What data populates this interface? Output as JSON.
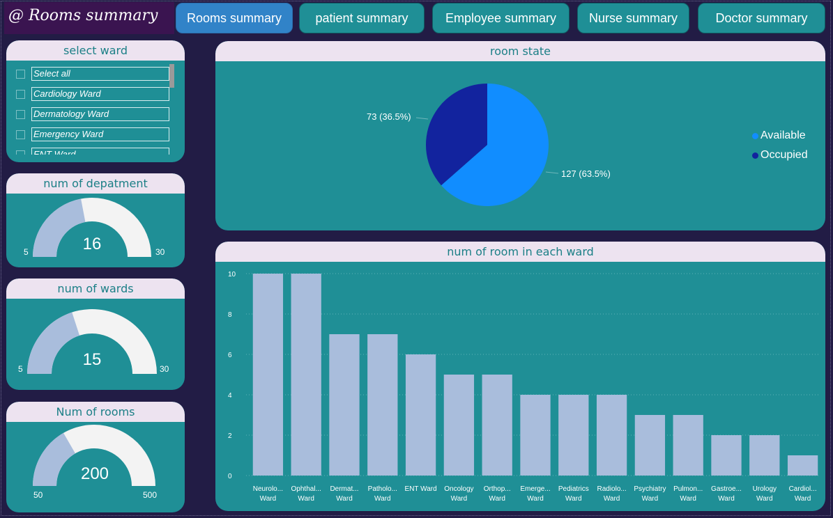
{
  "header": {
    "title": "@ Rooms summary",
    "nav": [
      {
        "label": "Rooms summary",
        "active": true
      },
      {
        "label": "patient summary",
        "active": false
      },
      {
        "label": "Employee summary",
        "active": false
      },
      {
        "label": "Nurse summary",
        "active": false
      },
      {
        "label": "Doctor summary",
        "active": false
      }
    ]
  },
  "slicer": {
    "title": "select ward",
    "items": [
      "Select all",
      "Cardiology Ward",
      "Dermatology Ward",
      "Emergency Ward",
      "ENT Ward"
    ]
  },
  "gauges": {
    "departments": {
      "title": "num of depatment",
      "value": "16",
      "min": "5",
      "max": "30"
    },
    "wards": {
      "title": "num of wards",
      "value": "15",
      "min": "5",
      "max": "30"
    },
    "rooms": {
      "title": "Num of rooms",
      "value": "200",
      "min": "50",
      "max": "500"
    }
  },
  "colors": {
    "background": "#221c45",
    "panel": "#1f8f96",
    "header_bg": "#ede3f0",
    "header_text": "#1b7f86",
    "available": "#118dff",
    "occupied": "#12239e",
    "bar": "#a9bddc",
    "gauge_fill": "#a9bddc",
    "gauge_track": "#f3f3f3",
    "nav_active": "#3183c8"
  },
  "chart_data": [
    {
      "type": "pie",
      "title": "room state",
      "legend_position": "right",
      "slices": [
        {
          "label": "Available",
          "value": 127,
          "percent": "63.5%"
        },
        {
          "label": "Occupied",
          "value": 73,
          "percent": "36.5%"
        }
      ],
      "data_labels": [
        "127 (63.5%)",
        "73 (36.5%)"
      ]
    },
    {
      "type": "bar",
      "title": "num of room in each ward",
      "categories": [
        [
          "Neurolo...",
          "Ward"
        ],
        [
          "Ophthal...",
          "Ward"
        ],
        [
          "Dermat...",
          "Ward"
        ],
        [
          "Patholo...",
          "Ward"
        ],
        [
          "ENT Ward",
          ""
        ],
        [
          "Oncology",
          "Ward"
        ],
        [
          "Orthop...",
          "Ward"
        ],
        [
          "Emerge...",
          "Ward"
        ],
        [
          "Pediatrics",
          "Ward"
        ],
        [
          "Radiolo...",
          "Ward"
        ],
        [
          "Psychiatry",
          "Ward"
        ],
        [
          "Pulmon...",
          "Ward"
        ],
        [
          "Gastroe...",
          "Ward"
        ],
        [
          "Urology",
          "Ward"
        ],
        [
          "Cardiol...",
          "Ward"
        ]
      ],
      "values": [
        10,
        10,
        7,
        7,
        6,
        5,
        5,
        4,
        4,
        4,
        3,
        3,
        2,
        2,
        1
      ],
      "ylim": [
        0,
        10
      ],
      "yticks": [
        0,
        2,
        4,
        6,
        8,
        10
      ],
      "grid": true
    }
  ]
}
